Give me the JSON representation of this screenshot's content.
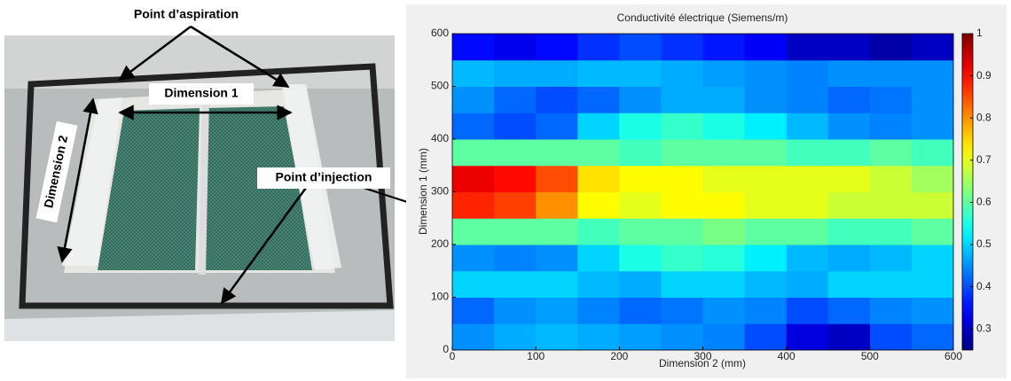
{
  "photo": {
    "labels": [
      "Point d’aspiration",
      "Dimension 1",
      "Dimension 2",
      "Point d’injection"
    ]
  },
  "chart_data": {
    "type": "heatmap",
    "title": "Conductivité électrique (Siemens/m)",
    "x_label": "Dimension 2 (mm)",
    "y_label": "Dimension 1 (mm)",
    "x": [
      25,
      75,
      125,
      175,
      225,
      275,
      325,
      375,
      425,
      475,
      525,
      575
    ],
    "y": [
      25,
      75,
      125,
      175,
      225,
      275,
      325,
      375,
      425,
      475,
      525,
      575
    ],
    "z": [
      [
        0.45,
        0.47,
        0.48,
        0.47,
        0.46,
        0.45,
        0.44,
        0.4,
        0.32,
        0.3,
        0.4,
        0.42
      ],
      [
        0.42,
        0.45,
        0.46,
        0.44,
        0.42,
        0.43,
        0.45,
        0.44,
        0.4,
        0.42,
        0.44,
        0.45
      ],
      [
        0.5,
        0.5,
        0.5,
        0.48,
        0.47,
        0.5,
        0.5,
        0.48,
        0.47,
        0.5,
        0.5,
        0.5
      ],
      [
        0.45,
        0.44,
        0.45,
        0.5,
        0.55,
        0.57,
        0.56,
        0.52,
        0.48,
        0.47,
        0.48,
        0.5
      ],
      [
        0.6,
        0.6,
        0.6,
        0.58,
        0.6,
        0.6,
        0.62,
        0.6,
        0.6,
        0.58,
        0.58,
        0.6
      ],
      [
        0.88,
        0.86,
        0.8,
        0.72,
        0.7,
        0.72,
        0.72,
        0.7,
        0.7,
        0.68,
        0.68,
        0.68
      ],
      [
        0.92,
        0.9,
        0.85,
        0.74,
        0.72,
        0.72,
        0.7,
        0.7,
        0.7,
        0.7,
        0.68,
        0.65
      ],
      [
        0.6,
        0.6,
        0.6,
        0.6,
        0.58,
        0.6,
        0.6,
        0.6,
        0.58,
        0.58,
        0.6,
        0.58
      ],
      [
        0.42,
        0.4,
        0.42,
        0.5,
        0.55,
        0.57,
        0.55,
        0.52,
        0.48,
        0.45,
        0.44,
        0.45
      ],
      [
        0.45,
        0.42,
        0.4,
        0.42,
        0.45,
        0.47,
        0.47,
        0.45,
        0.44,
        0.42,
        0.43,
        0.45
      ],
      [
        0.48,
        0.47,
        0.47,
        0.48,
        0.48,
        0.47,
        0.46,
        0.45,
        0.44,
        0.45,
        0.45,
        0.45
      ],
      [
        0.35,
        0.33,
        0.35,
        0.38,
        0.4,
        0.38,
        0.36,
        0.34,
        0.3,
        0.3,
        0.28,
        0.3
      ]
    ],
    "xlim": [
      0,
      600
    ],
    "ylim": [
      0,
      600
    ],
    "xticks": [
      0,
      100,
      200,
      300,
      400,
      500,
      600
    ],
    "yticks": [
      0,
      100,
      200,
      300,
      400,
      500,
      600
    ],
    "colormap": "jet",
    "clim": [
      0.25,
      1
    ],
    "cticks": [
      0.3,
      0.4,
      0.5,
      0.6,
      0.7,
      0.8,
      0.9,
      1
    ]
  }
}
